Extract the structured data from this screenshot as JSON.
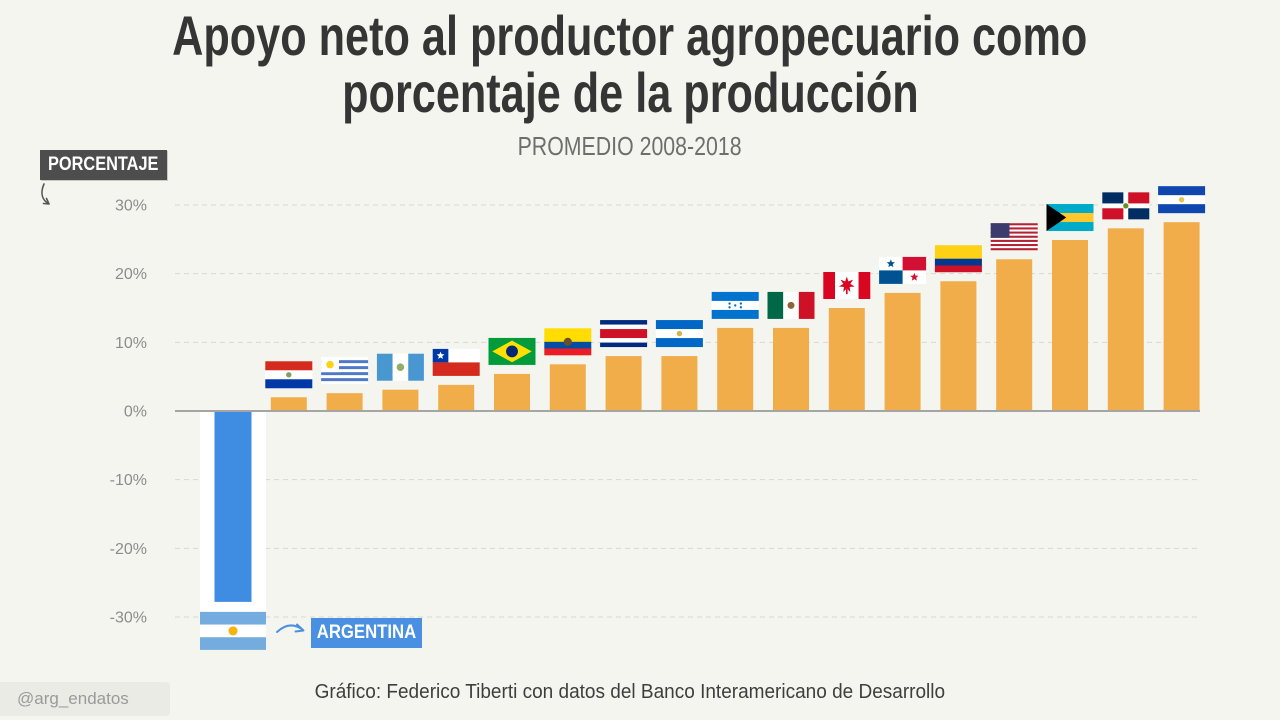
{
  "chart_data": {
    "type": "bar",
    "title_lines": [
      "Apoyo neto al productor agropecuario como",
      "porcentaje de la producción"
    ],
    "subtitle": "PROMEDIO 2008-2018",
    "ylabel": "PORCENTAJE",
    "ylim": [
      -30,
      30
    ],
    "yticks": [
      30,
      20,
      10,
      0,
      -10,
      -20,
      -30
    ],
    "ytick_labels": [
      "30%",
      "20%",
      "10%",
      "0%",
      "-10%",
      "-20%",
      "-30%"
    ],
    "grid": true,
    "x_icons": [
      "flag-argentina-icon",
      "flag-paraguay-icon",
      "flag-uruguay-icon",
      "flag-guatemala-icon",
      "flag-chile-icon",
      "flag-brazil-icon",
      "flag-ecuador-icon",
      "flag-costa-rica-icon",
      "flag-nicaragua-icon",
      "flag-honduras-icon",
      "flag-mexico-icon",
      "flag-canada-icon",
      "flag-panama-icon",
      "flag-colombia-icon",
      "flag-usa-icon",
      "flag-bahamas-icon",
      "flag-dominican-icon",
      "flag-el-salvador-icon"
    ],
    "values": [
      -27.8,
      2.0,
      2.6,
      3.1,
      3.8,
      5.4,
      6.8,
      8.0,
      8.0,
      12.1,
      12.1,
      15.0,
      17.2,
      18.9,
      22.1,
      24.9,
      26.6,
      27.5
    ],
    "highlight_index": 0,
    "annotation": {
      "text": "ARGENTINA"
    },
    "colors": {
      "bar": "#f2ad4b",
      "highlight": "#3f8de3",
      "highlight_label": "#4a90e2"
    },
    "source": "Gráfico: Federico Tiberti con datos del Banco Interamericano de Desarrollo"
  },
  "credit_handle": "@arg_endatos"
}
